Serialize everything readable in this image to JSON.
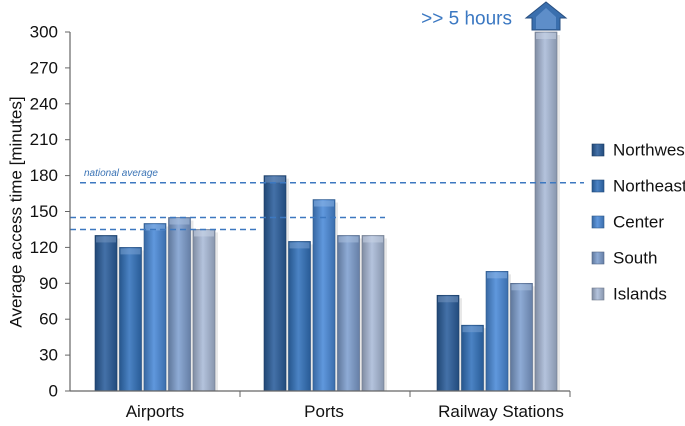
{
  "chart_data": {
    "type": "bar",
    "categories": [
      "Airports",
      "Ports",
      "Railway Stations"
    ],
    "series": [
      {
        "name": "Northwest",
        "values": [
          130,
          180,
          80
        ],
        "color": "#2a5e9c"
      },
      {
        "name": "Northeast",
        "values": [
          120,
          125,
          55
        ],
        "color": "#3272bc"
      },
      {
        "name": "Center",
        "values": [
          140,
          160,
          100
        ],
        "color": "#4a8ad8"
      },
      {
        "name": "South",
        "values": [
          145,
          130,
          90
        ],
        "color": "#7f9fcf"
      },
      {
        "name": "Islands",
        "values": [
          135,
          130,
          300
        ],
        "color": "#aabbd8"
      }
    ],
    "ylabel": "Average access time [minutes]",
    "xlabel": "",
    "ylim": [
      0,
      300
    ],
    "yticks": [
      "0",
      "30",
      "60",
      "90",
      "120",
      "150",
      "180",
      "210",
      "240",
      "270",
      "300"
    ],
    "legend_position": "right",
    "grid": false,
    "reference_lines": [
      {
        "label": "national average",
        "value": 174
      },
      {
        "label": "",
        "value": 145
      },
      {
        "label": "",
        "value": 135
      }
    ],
    "overflow_annotation": ">> 5 hours",
    "overflow_series": "Islands",
    "overflow_category": "Railway Stations"
  }
}
